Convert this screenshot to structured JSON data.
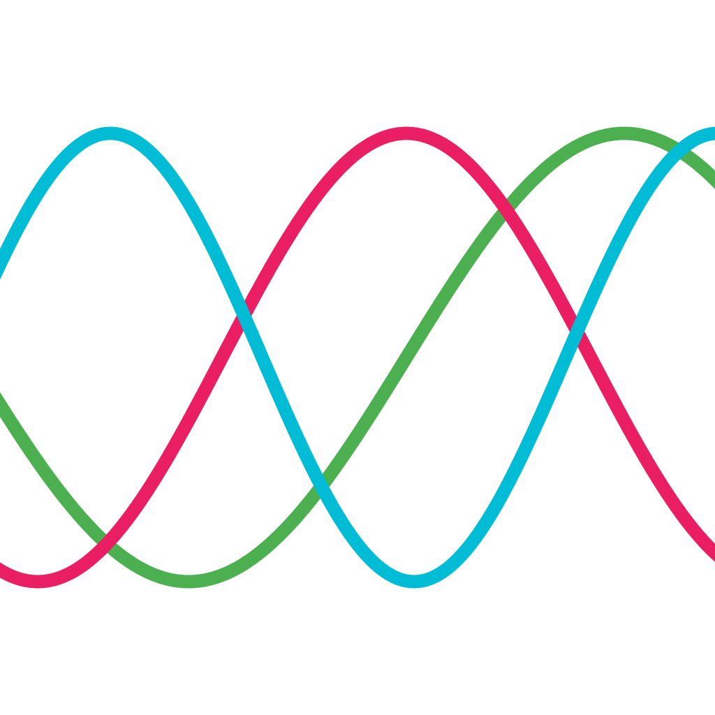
{
  "artwork": {
    "background_color": "#ffffff",
    "waves": [
      {
        "name": "green-wave",
        "color": "#4caf50"
      },
      {
        "name": "pink-wave",
        "color": "#e91e63"
      },
      {
        "name": "cyan-wave",
        "color": "#00bcd4"
      }
    ]
  }
}
